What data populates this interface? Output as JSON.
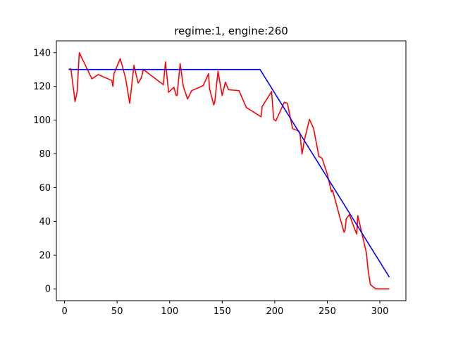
{
  "chart_data": {
    "type": "line",
    "title": "regime:1, engine:260",
    "xlabel": "",
    "ylabel": "",
    "xlim": [
      -7.8,
      324.8
    ],
    "ylim": [
      -7,
      147
    ],
    "grid": false,
    "legend": "none",
    "x_ticks": [
      0,
      50,
      100,
      150,
      200,
      250,
      300
    ],
    "y_ticks": [
      0,
      20,
      40,
      60,
      80,
      100,
      120,
      140
    ],
    "series": [
      {
        "color": "#ff0000",
        "points": [
          [
            4,
            130
          ],
          [
            6,
            130.5
          ],
          [
            10,
            111
          ],
          [
            12,
            117
          ],
          [
            14,
            140
          ],
          [
            26,
            124.5
          ],
          [
            32,
            127
          ],
          [
            45,
            123.5
          ],
          [
            46,
            120
          ],
          [
            47,
            127.5
          ],
          [
            53,
            136.5
          ],
          [
            58,
            125
          ],
          [
            62,
            110
          ],
          [
            66,
            132.5
          ],
          [
            70,
            122
          ],
          [
            73,
            125
          ],
          [
            75,
            130
          ],
          [
            94,
            121
          ],
          [
            96,
            134.5
          ],
          [
            99,
            116.5
          ],
          [
            104,
            119.5
          ],
          [
            106,
            115
          ],
          [
            107,
            114.5
          ],
          [
            110,
            133.5
          ],
          [
            113,
            120
          ],
          [
            117,
            112.5
          ],
          [
            121,
            117.5
          ],
          [
            132,
            120.5
          ],
          [
            137,
            127.5
          ],
          [
            138,
            118.5
          ],
          [
            142,
            109
          ],
          [
            143,
            111
          ],
          [
            146,
            129
          ],
          [
            150,
            114.5
          ],
          [
            153,
            122.5
          ],
          [
            156,
            118
          ],
          [
            166,
            117.5
          ],
          [
            173,
            107.5
          ],
          [
            187,
            102
          ],
          [
            188,
            108
          ],
          [
            197,
            117
          ],
          [
            199,
            100.5
          ],
          [
            201,
            99.5
          ],
          [
            209,
            110.5
          ],
          [
            212,
            110
          ],
          [
            217,
            95
          ],
          [
            223,
            93.5
          ],
          [
            224,
            92
          ],
          [
            226,
            80
          ],
          [
            228,
            87.5
          ],
          [
            233,
            100.5
          ],
          [
            237,
            95
          ],
          [
            242,
            78.5
          ],
          [
            245,
            77.5
          ],
          [
            250,
            68
          ],
          [
            254,
            57.5
          ],
          [
            255,
            58.5
          ],
          [
            263,
            40
          ],
          [
            266,
            33.5
          ],
          [
            267,
            35
          ],
          [
            268,
            41.5
          ],
          [
            271,
            44
          ],
          [
            277,
            34
          ],
          [
            278,
            32.5
          ],
          [
            279,
            43.5
          ],
          [
            287,
            22
          ],
          [
            289,
            10.5
          ],
          [
            291,
            2.5
          ],
          [
            296,
            0
          ],
          [
            305,
            0
          ],
          [
            309,
            0
          ]
        ]
      },
      {
        "color": "#0000ff",
        "points": [
          [
            4,
            130
          ],
          [
            186,
            130
          ],
          [
            309,
            7
          ]
        ]
      }
    ]
  }
}
